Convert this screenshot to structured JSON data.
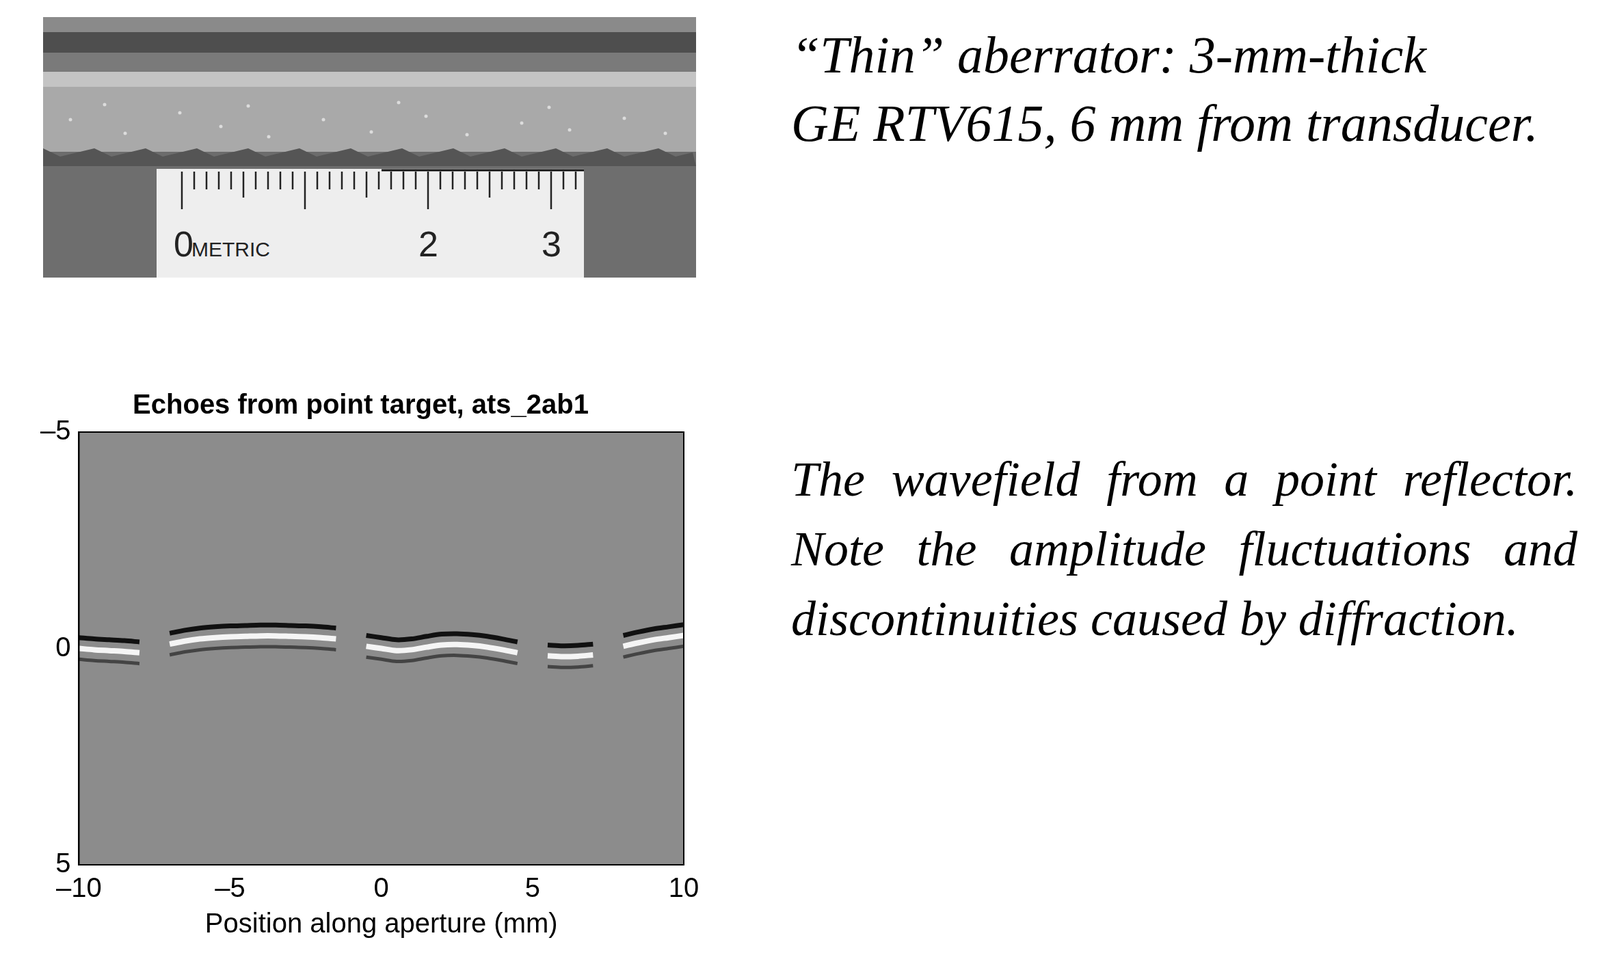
{
  "photo": {
    "ruler_labels": [
      "0",
      "METRIC",
      "2",
      "3"
    ]
  },
  "caption_top": [
    "“Thin” aberrator: 3-mm-thick",
    "GE RTV615, 6 mm from transducer."
  ],
  "caption_bottom": "The wavefield from a point reflector. Note the amplitude fluctuations and discontinuities caused by diffraction.",
  "chart_data": {
    "type": "line",
    "title": "Echoes from point target, ats_2ab1",
    "x_label": "Position along aperture (mm)",
    "xlim": [
      -10,
      10
    ],
    "xticks": [
      {
        "value": -10,
        "label": "–10"
      },
      {
        "value": -5,
        "label": "–5"
      },
      0,
      5,
      10
    ],
    "ylim": [
      -5,
      5
    ],
    "yticks": [
      {
        "value": -5,
        "label": "–5"
      },
      0,
      5
    ],
    "grid": false,
    "x": [
      -10,
      -9.5,
      -9,
      -8.5,
      -8,
      -7.5,
      -7,
      -6.5,
      -6,
      -5.5,
      -5,
      -4.5,
      -4,
      -3.5,
      -3,
      -2.5,
      -2,
      -1.5,
      -1,
      -0.5,
      0,
      0.5,
      1,
      1.5,
      2,
      2.5,
      3,
      3.5,
      4,
      4.5,
      5,
      5.5,
      6,
      6.5,
      7,
      7.5,
      8,
      8.5,
      9,
      9.5,
      10
    ],
    "series": [
      {
        "color": "#111111",
        "values": [
          -0.25,
          -0.22,
          -0.2,
          -0.18,
          -0.15,
          null,
          -0.35,
          -0.42,
          -0.47,
          -0.5,
          -0.52,
          -0.53,
          -0.54,
          -0.54,
          -0.53,
          -0.52,
          -0.5,
          -0.47,
          null,
          -0.3,
          -0.25,
          -0.2,
          -0.22,
          -0.28,
          -0.33,
          -0.34,
          -0.32,
          -0.28,
          -0.22,
          -0.15,
          null,
          -0.08,
          -0.06,
          -0.07,
          -0.1,
          null,
          -0.3,
          -0.38,
          -0.45,
          -0.5,
          -0.55
        ]
      },
      {
        "color": "#f5f5f5",
        "values": [
          0.0,
          0.03,
          0.05,
          0.07,
          0.1,
          null,
          -0.1,
          -0.17,
          -0.22,
          -0.25,
          -0.27,
          -0.28,
          -0.29,
          -0.29,
          -0.28,
          -0.27,
          -0.25,
          -0.22,
          null,
          -0.05,
          0.0,
          0.05,
          0.03,
          -0.03,
          -0.08,
          -0.09,
          -0.07,
          -0.03,
          0.03,
          0.1,
          null,
          0.17,
          0.19,
          0.18,
          0.15,
          null,
          -0.05,
          -0.13,
          -0.2,
          -0.25,
          -0.3
        ]
      },
      {
        "color": "#444444",
        "values": [
          0.25,
          0.28,
          0.3,
          0.32,
          0.35,
          null,
          0.15,
          0.08,
          0.03,
          0.0,
          -0.02,
          -0.03,
          -0.04,
          -0.04,
          -0.03,
          -0.02,
          0.0,
          0.03,
          null,
          0.2,
          0.25,
          0.3,
          0.28,
          0.22,
          0.17,
          0.16,
          0.18,
          0.22,
          0.28,
          0.35,
          null,
          0.42,
          0.44,
          0.43,
          0.4,
          null,
          0.2,
          0.12,
          0.05,
          0.0,
          -0.05
        ]
      }
    ]
  }
}
